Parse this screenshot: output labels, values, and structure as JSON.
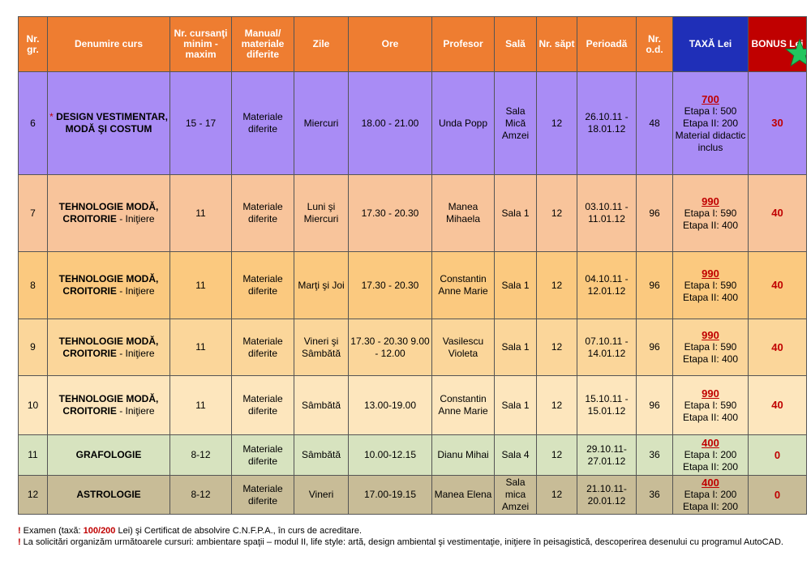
{
  "header": {
    "nr_gr": "Nr. gr.",
    "course_name": "Denumire curs",
    "min_max": "Nr. cursanţi minim - maxim",
    "materials": "Manual/ materiale diferite",
    "days": "Zile",
    "hours": "Ore",
    "teacher": "Profesor",
    "room": "Sală",
    "weeks": "Nr. săpt",
    "period": "Perioadă",
    "hours_count": "Nr. o.d.",
    "fee": "TAXĂ Lei",
    "bonus": "BONUS Lei"
  },
  "colors": {
    "header": "#ee7d31",
    "fee_header": "#1f2fb8",
    "bonus_header": "#c00000",
    "star": "#22c55e",
    "accent_text": "#c00000"
  },
  "rows": [
    {
      "nr": "6",
      "prefix": "* ",
      "name": "DESIGN VESTIMENTAR, MODĂ ŞI COSTUM",
      "suffix": "",
      "min_max": "15 - 17",
      "materials": "Materiale diferite",
      "days": "Miercuri",
      "hours": "18.00 - 21.00",
      "teacher": "Unda Popp",
      "room": "Sala Mică Amzei",
      "weeks": "12",
      "period": "26.10.11 - 18.01.12",
      "hours_count": "48",
      "fee_total": "700",
      "fee_lines": [
        "Etapa I: 500",
        "Etapa II: 200",
        "Material didactic inclus"
      ],
      "bonus": "30"
    },
    {
      "nr": "7",
      "prefix": "",
      "name": "TEHNOLOGIE MODĂ, CROITORIE",
      "suffix": " - Iniţiere",
      "min_max": "11",
      "materials": "Materiale diferite",
      "days": "Luni şi Miercuri",
      "hours": "17.30 - 20.30",
      "teacher": "Manea Mihaela",
      "room": "Sala 1",
      "weeks": "12",
      "period": "03.10.11 - 11.01.12",
      "hours_count": "96",
      "fee_total": "990",
      "fee_lines": [
        "Etapa I: 590",
        "Etapa II: 400"
      ],
      "bonus": "40"
    },
    {
      "nr": "8",
      "prefix": "",
      "name": "TEHNOLOGIE MODĂ, CROITORIE",
      "suffix": " - Iniţiere",
      "min_max": "11",
      "materials": "Materiale diferite",
      "days": "Marţi şi Joi",
      "hours": "17.30 - 20.30",
      "teacher": "Constantin Anne Marie",
      "room": "Sala 1",
      "weeks": "12",
      "period": "04.10.11 - 12.01.12",
      "hours_count": "96",
      "fee_total": "990",
      "fee_lines": [
        "Etapa I: 590",
        "Etapa II: 400"
      ],
      "bonus": "40"
    },
    {
      "nr": "9",
      "prefix": "",
      "name": "TEHNOLOGIE MODĂ, CROITORIE",
      "suffix": " - Iniţiere",
      "min_max": "11",
      "materials": "Materiale diferite",
      "days": "Vineri şi Sâmbătă",
      "hours": "17.30 - 20.30 9.00 - 12.00",
      "teacher": "Vasilescu Violeta",
      "room": "Sala 1",
      "weeks": "12",
      "period": "07.10.11 - 14.01.12",
      "hours_count": "96",
      "fee_total": "990",
      "fee_lines": [
        "Etapa I: 590",
        "Etapa II: 400"
      ],
      "bonus": "40"
    },
    {
      "nr": "10",
      "prefix": "",
      "name": "TEHNOLOGIE MODĂ, CROITORIE",
      "suffix": " - Iniţiere",
      "min_max": "11",
      "materials": "Materiale diferite",
      "days": "Sâmbătă",
      "hours": "13.00-19.00",
      "teacher": "Constantin Anne Marie",
      "room": "Sala 1",
      "weeks": "12",
      "period": "15.10.11 - 15.01.12",
      "hours_count": "96",
      "fee_total": "990",
      "fee_lines": [
        "Etapa I: 590",
        "Etapa II: 400"
      ],
      "bonus": "40"
    },
    {
      "nr": "11",
      "prefix": "",
      "name": "GRAFOLOGIE",
      "suffix": "",
      "min_max": "8-12",
      "materials": "Materiale diferite",
      "days": "Sâmbătă",
      "hours": "10.00-12.15",
      "teacher": "Dianu Mihai",
      "room": "Sala 4",
      "weeks": "12",
      "period": "29.10.11- 27.01.12",
      "hours_count": "36",
      "fee_total": "400",
      "fee_lines": [
        "Etapa I: 200",
        "Etapa II: 200"
      ],
      "bonus": "0"
    },
    {
      "nr": "12",
      "prefix": "",
      "name": "ASTROLOGIE",
      "suffix": "",
      "min_max": "8-12",
      "materials": "Materiale diferite",
      "days": "Vineri",
      "hours": "17.00-19.15",
      "teacher": "Manea Elena",
      "room": "Sala mica Amzei",
      "weeks": "12",
      "period": "21.10.11- 20.01.12",
      "hours_count": "36",
      "fee_total": "400",
      "fee_lines": [
        "Etapa I: 200",
        "Etapa II: 200"
      ],
      "bonus": "0"
    }
  ],
  "notes": {
    "marker": "!",
    "exam_prefix": "Examen (taxă: ",
    "exam_highlight": "100/200",
    "exam_suffix": " Lei) şi Certificat de absolvire C.N.F.P.A., în curs de acreditare.",
    "courses_text": "La solicitări organizăm următoarele cursuri: ambientare spaţii – modul II, life style: artă, design ambiental şi vestimentaţie, iniţiere în peisagistică, descoperirea desenului cu programul AutoCAD."
  }
}
